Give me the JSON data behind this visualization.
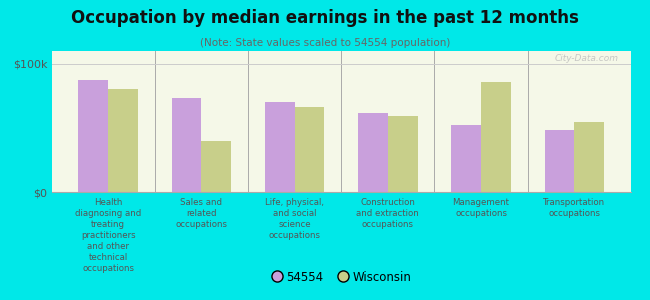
{
  "title": "Occupation by median earnings in the past 12 months",
  "subtitle": "(Note: State values scaled to 54554 population)",
  "categories": [
    "Health\ndiagnosing and\ntreating\npractitioners\nand other\ntechnical\noccupations",
    "Sales and\nrelated\noccupations",
    "Life, physical,\nand social\nscience\noccupations",
    "Construction\nand extraction\noccupations",
    "Management\noccupations",
    "Transportation\noccupations"
  ],
  "values_54554": [
    87000,
    73000,
    70000,
    62000,
    52000,
    48000
  ],
  "values_wisconsin": [
    80000,
    40000,
    66000,
    59000,
    86000,
    55000
  ],
  "color_54554": "#c9a0dc",
  "color_wisconsin": "#c8cf8a",
  "background_color": "#00e8e8",
  "plot_bg_top": "#e8f0d0",
  "plot_bg_bottom": "#f5f8e8",
  "ylabel_100k": "$100k",
  "ylabel_0": "$0",
  "ylim": [
    0,
    110000
  ],
  "yticks": [
    0,
    100000
  ],
  "ytick_labels": [
    "$0",
    "$100k"
  ],
  "legend_54554": "54554",
  "legend_wisconsin": "Wisconsin",
  "watermark": "City-Data.com"
}
